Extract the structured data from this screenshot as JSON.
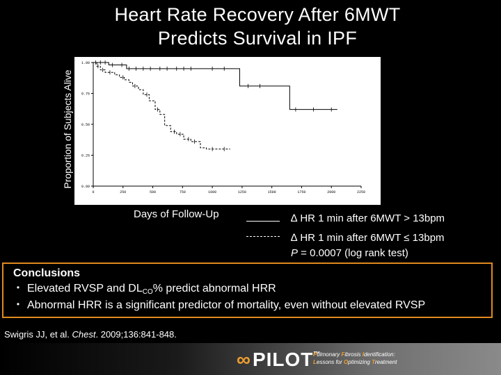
{
  "title_line1": "Heart Rate Recovery After 6MWT",
  "title_line2": "Predicts Survival in IPF",
  "legend": {
    "solid_label": "∆ HR 1 min after 6MWT > 13bpm",
    "dashed_label": "∆ HR 1 min after 6MWT ≤ 13bpm",
    "p_value_label": "P",
    "p_value_text": " = 0.0007 (log rank test)"
  },
  "conclusions": {
    "heading": "Conclusions",
    "bullet1_pre": "Elevated RVSP and DL",
    "bullet1_sub": "CO",
    "bullet1_post": "% predict abnormal HRR",
    "bullet2": "Abnormal HRR is a significant predictor of mortality, even without elevated RVSP"
  },
  "citation": {
    "authors": "Swigris JJ, et al. ",
    "journal": "Chest",
    "details": ". 2009;136:841-848."
  },
  "footer": {
    "logo_text": "PILOT",
    "logo_tm": "™",
    "tagline_line1_a": "P",
    "tagline_line1_b": "ulmonary ",
    "tagline_line1_c": "F",
    "tagline_line1_d": "ibrosis ",
    "tagline_line1_e": "I",
    "tagline_line1_f": "dentification:",
    "tagline_line2_a": "L",
    "tagline_line2_b": "essons for ",
    "tagline_line2_c": "O",
    "tagline_line2_d": "ptimizing ",
    "tagline_line2_e": "T",
    "tagline_line2_f": "reatment"
  },
  "chart_data": {
    "type": "line",
    "chart_subtype": "kaplan-meier",
    "xlabel": "Days of Follow-Up",
    "ylabel": "Proportion of Subjects Alive",
    "xlim": [
      0,
      2250
    ],
    "ylim": [
      0,
      1.0
    ],
    "x_ticks": [
      0,
      250,
      500,
      750,
      1000,
      1250,
      1500,
      1750,
      2000,
      2250
    ],
    "y_ticks": [
      0.0,
      0.25,
      0.5,
      0.75,
      1.0
    ],
    "y_tick_labels": [
      "0.00",
      "0.25",
      "0.50",
      "0.75",
      "1.00"
    ],
    "grid": false,
    "series": [
      {
        "name": "∆ HR 1 min after 6MWT > 13bpm",
        "style": "solid",
        "x": [
          0,
          80,
          130,
          200,
          280,
          330,
          900,
          1200,
          1230,
          1600,
          1650,
          2050
        ],
        "y": [
          1.0,
          1.0,
          0.98,
          0.98,
          0.95,
          0.95,
          0.95,
          0.95,
          0.81,
          0.81,
          0.62,
          0.62
        ],
        "censor_x": [
          20,
          60,
          100,
          160,
          240,
          300,
          360,
          420,
          480,
          560,
          620,
          700,
          760,
          820,
          1000,
          1100,
          1300,
          1400,
          1700,
          1850,
          2000
        ]
      },
      {
        "name": "∆ HR 1 min after 6MWT ≤ 13bpm",
        "style": "dashed",
        "x": [
          0,
          30,
          60,
          100,
          180,
          220,
          260,
          300,
          330,
          380,
          420,
          470,
          520,
          560,
          600,
          650,
          700,
          760,
          820,
          900,
          950,
          1150
        ],
        "y": [
          1.0,
          0.97,
          0.94,
          0.92,
          0.9,
          0.88,
          0.86,
          0.84,
          0.81,
          0.78,
          0.74,
          0.69,
          0.62,
          0.58,
          0.49,
          0.44,
          0.42,
          0.38,
          0.36,
          0.31,
          0.3,
          0.3
        ],
        "censor_x": [
          40,
          80,
          140,
          250,
          350,
          450,
          540,
          680,
          730,
          800,
          850,
          1000,
          1100
        ]
      }
    ]
  }
}
